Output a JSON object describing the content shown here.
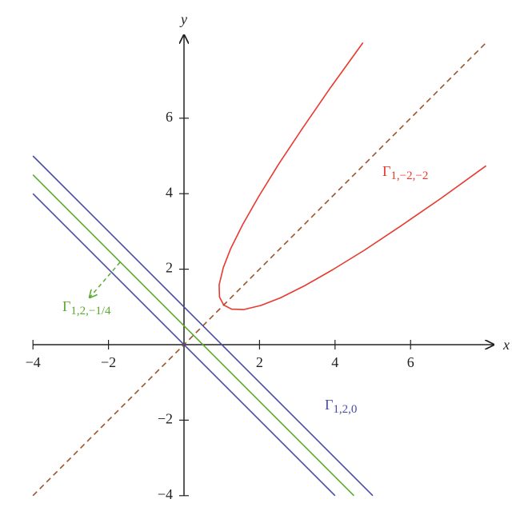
{
  "chart_data": {
    "type": "line",
    "x_label": "x",
    "y_label": "y",
    "xlim": [
      -4,
      8.2
    ],
    "ylim": [
      -4,
      8.2
    ],
    "xticks": [
      {
        "value": -4,
        "label": "−4"
      },
      {
        "value": -2,
        "label": "−2"
      },
      2,
      4,
      6
    ],
    "yticks": [
      {
        "value": -4,
        "label": "−4"
      },
      {
        "value": -2,
        "label": "−2"
      },
      2,
      4,
      6
    ],
    "series": [
      {
        "color": "#e8392f",
        "dashed": false,
        "x": [
          4.74,
          3.88,
          3.15,
          2.51,
          1.98,
          1.56,
          1.24,
          1.04,
          0.93,
          0.94,
          1.05,
          1.26,
          1.58,
          2.04,
          2.55,
          3.19,
          3.93,
          4.79,
          5.75,
          6.81,
          8.0
        ],
        "y": [
          8.0,
          6.81,
          5.75,
          4.79,
          3.93,
          3.19,
          2.55,
          2.04,
          1.58,
          1.26,
          1.05,
          0.94,
          0.93,
          1.04,
          1.24,
          1.56,
          1.98,
          2.51,
          3.15,
          3.88,
          4.74
        ]
      },
      {
        "color": "#a0522d",
        "dashed": true,
        "x": [
          -4,
          8
        ],
        "y": [
          -4,
          8
        ]
      },
      {
        "color": "#4a4aa8",
        "dashed": false,
        "x": [
          -4,
          5
        ],
        "y": [
          5,
          -4
        ]
      },
      {
        "color": "#4a4aa8",
        "dashed": false,
        "x": [
          -4,
          4
        ],
        "y": [
          4,
          -4
        ]
      },
      {
        "color": "#5aaa32",
        "dashed": false,
        "x": [
          -4,
          4.5
        ],
        "y": [
          4.5,
          -4
        ]
      }
    ],
    "annotations": [
      {
        "text": "Γ",
        "subscript": "1,−2,−2",
        "color": "#e8392f"
      },
      {
        "text": "Γ",
        "subscript": "1,2,−1/4",
        "color": "#5aaa32"
      },
      {
        "text": "Γ",
        "subscript": "1,2,0",
        "color": "#4a4aa8"
      }
    ]
  }
}
